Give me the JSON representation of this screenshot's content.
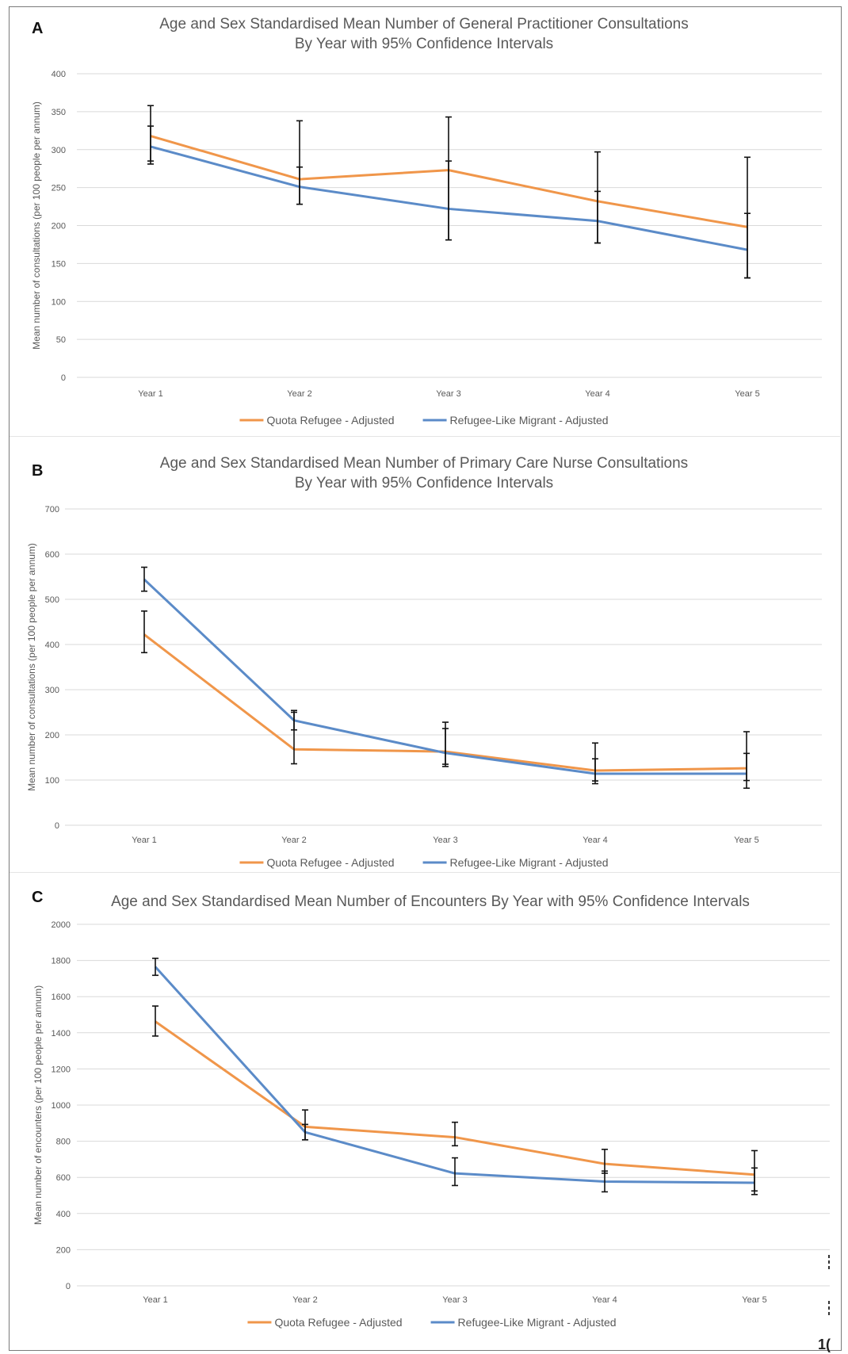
{
  "colors": {
    "quota": "#f0964a",
    "migrant": "#5b8bc8",
    "error_bar": "#111111",
    "grid": "#d9d9d9",
    "title": "#595959",
    "tick": "#595959"
  },
  "edge_mark": "1(",
  "chart_data": [
    {
      "type": "line",
      "panel_letter": "A",
      "title_lines": [
        "Age and Sex Standardised Mean Number of General Practitioner Consultations",
        "By Year with 95% Confidence Intervals"
      ],
      "ylabel": "Mean number of consultations (per 100 people per annum)",
      "xlabel": "",
      "categories": [
        "Year 1",
        "Year 2",
        "Year 3",
        "Year 4",
        "Year 5"
      ],
      "ylim": [
        0,
        400
      ],
      "yticks": [
        "0",
        "50",
        "100",
        "150",
        "200",
        "250",
        "300",
        "350",
        "400"
      ],
      "grid": true,
      "legend_position": "bottom",
      "series": [
        {
          "name": "Quota Refugee - Adjusted",
          "color_key": "quota",
          "values": [
            318,
            261,
            273,
            232,
            198
          ],
          "ci_low": [
            285,
            228,
            181,
            177,
            131
          ],
          "ci_high": [
            358,
            338,
            343,
            297,
            290
          ]
        },
        {
          "name": "Refugee-Like Migrant - Adjusted",
          "color_key": "migrant",
          "values": [
            304,
            251,
            222,
            206,
            168
          ],
          "ci_low": [
            281,
            228,
            181,
            177,
            131
          ],
          "ci_high": [
            331,
            277,
            285,
            245,
            216
          ]
        }
      ]
    },
    {
      "type": "line",
      "panel_letter": "B",
      "title_lines": [
        "Age and Sex Standardised Mean Number of Primary Care Nurse Consultations",
        "By Year with 95% Confidence Intervals"
      ],
      "ylabel": "Mean number of consultations (per 100 people per annum)",
      "xlabel": "",
      "categories": [
        "Year 1",
        "Year 2",
        "Year 3",
        "Year 4",
        "Year 5"
      ],
      "ylim": [
        0,
        700
      ],
      "yticks": [
        "0",
        "100",
        "200",
        "300",
        "400",
        "500",
        "600",
        "700"
      ],
      "grid": true,
      "legend_position": "bottom",
      "series": [
        {
          "name": "Quota Refugee - Adjusted",
          "color_key": "quota",
          "values": [
            422,
            168,
            163,
            121,
            126
          ],
          "ci_low": [
            382,
            136,
            130,
            92,
            82
          ],
          "ci_high": [
            474,
            254,
            228,
            182,
            207
          ]
        },
        {
          "name": "Refugee-Like Migrant - Adjusted",
          "color_key": "migrant",
          "values": [
            544,
            232,
            160,
            114,
            114
          ],
          "ci_low": [
            518,
            211,
            135,
            98,
            99
          ],
          "ci_high": [
            571,
            250,
            214,
            147,
            159
          ]
        }
      ]
    },
    {
      "type": "line",
      "panel_letter": "C",
      "title_lines": [
        "Age and Sex Standardised Mean Number of Encounters By Year with 95% Confidence Intervals"
      ],
      "ylabel": "Mean number of encounters (per 100 people per annum)",
      "xlabel": "",
      "categories": [
        "Year 1",
        "Year 2",
        "Year 3",
        "Year 4",
        "Year 5"
      ],
      "ylim": [
        0,
        2000
      ],
      "yticks": [
        "0",
        "200",
        "400",
        "600",
        "800",
        "1000",
        "1200",
        "1400",
        "1600",
        "1800",
        "2000"
      ],
      "grid": true,
      "legend_position": "bottom",
      "series": [
        {
          "name": "Quota Refugee - Adjusted",
          "color_key": "quota",
          "values": [
            1462,
            880,
            822,
            675,
            615
          ],
          "ci_low": [
            1382,
            808,
            775,
            623,
            525
          ],
          "ci_high": [
            1548,
            973,
            905,
            755,
            748
          ]
        },
        {
          "name": "Refugee-Like Migrant - Adjusted",
          "color_key": "migrant",
          "values": [
            1765,
            850,
            622,
            577,
            570
          ],
          "ci_low": [
            1718,
            808,
            555,
            520,
            505
          ],
          "ci_high": [
            1812,
            893,
            708,
            635,
            652
          ]
        }
      ]
    }
  ]
}
